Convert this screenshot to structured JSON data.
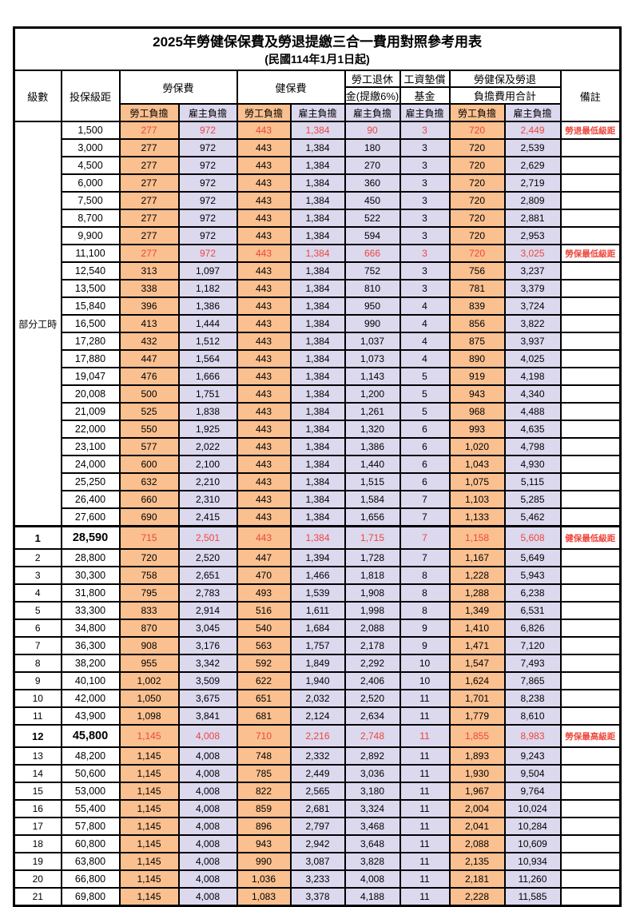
{
  "title": "2025年勞健保保費及勞退提繳三合一費用對照參考用表",
  "subtitle": "(民國114年1月1日起)",
  "colors": {
    "employee_bg": "#FAC090",
    "employer_bg": "#DCD8EE",
    "highlight_red": "#EE463C",
    "border": "#000000"
  },
  "header": {
    "level": "級數",
    "salary": "投保級距",
    "labor_insurance": "勞保費",
    "health_insurance": "健保費",
    "pension_line1": "勞工退休",
    "pension_line2": "金(提繳6%)",
    "wage_fund_line1": "工資墊償",
    "wage_fund_line2": "基金",
    "total_line1": "勞健保及勞退",
    "total_line2": "負擔費用合計",
    "remark": "備註",
    "employee": "勞工負擔",
    "employer": "雇主負擔"
  },
  "part_time_label": "部分工時",
  "rows": [
    {
      "level": "",
      "salary": "1,500",
      "v": [
        "277",
        "972",
        "443",
        "1,384",
        "90",
        "3",
        "720",
        "2,449"
      ],
      "remark": "勞退最低級距",
      "red": true
    },
    {
      "level": "",
      "salary": "3,000",
      "v": [
        "277",
        "972",
        "443",
        "1,384",
        "180",
        "3",
        "720",
        "2,539"
      ],
      "remark": ""
    },
    {
      "level": "",
      "salary": "4,500",
      "v": [
        "277",
        "972",
        "443",
        "1,384",
        "270",
        "3",
        "720",
        "2,629"
      ],
      "remark": ""
    },
    {
      "level": "",
      "salary": "6,000",
      "v": [
        "277",
        "972",
        "443",
        "1,384",
        "360",
        "3",
        "720",
        "2,719"
      ],
      "remark": ""
    },
    {
      "level": "",
      "salary": "7,500",
      "v": [
        "277",
        "972",
        "443",
        "1,384",
        "450",
        "3",
        "720",
        "2,809"
      ],
      "remark": ""
    },
    {
      "level": "",
      "salary": "8,700",
      "v": [
        "277",
        "972",
        "443",
        "1,384",
        "522",
        "3",
        "720",
        "2,881"
      ],
      "remark": ""
    },
    {
      "level": "",
      "salary": "9,900",
      "v": [
        "277",
        "972",
        "443",
        "1,384",
        "594",
        "3",
        "720",
        "2,953"
      ],
      "remark": ""
    },
    {
      "level": "",
      "salary": "11,100",
      "v": [
        "277",
        "972",
        "443",
        "1,384",
        "666",
        "3",
        "720",
        "3,025"
      ],
      "remark": "勞保最低級距",
      "red": true
    },
    {
      "level": "",
      "salary": "12,540",
      "v": [
        "313",
        "1,097",
        "443",
        "1,384",
        "752",
        "3",
        "756",
        "3,237"
      ],
      "remark": ""
    },
    {
      "level": "",
      "salary": "13,500",
      "v": [
        "338",
        "1,182",
        "443",
        "1,384",
        "810",
        "3",
        "781",
        "3,379"
      ],
      "remark": ""
    },
    {
      "level": "",
      "salary": "15,840",
      "v": [
        "396",
        "1,386",
        "443",
        "1,384",
        "950",
        "4",
        "839",
        "3,724"
      ],
      "remark": ""
    },
    {
      "level": "",
      "salary": "16,500",
      "v": [
        "413",
        "1,444",
        "443",
        "1,384",
        "990",
        "4",
        "856",
        "3,822"
      ],
      "remark": ""
    },
    {
      "level": "",
      "salary": "17,280",
      "v": [
        "432",
        "1,512",
        "443",
        "1,384",
        "1,037",
        "4",
        "875",
        "3,937"
      ],
      "remark": ""
    },
    {
      "level": "",
      "salary": "17,880",
      "v": [
        "447",
        "1,564",
        "443",
        "1,384",
        "1,073",
        "4",
        "890",
        "4,025"
      ],
      "remark": ""
    },
    {
      "level": "",
      "salary": "19,047",
      "v": [
        "476",
        "1,666",
        "443",
        "1,384",
        "1,143",
        "5",
        "919",
        "4,198"
      ],
      "remark": ""
    },
    {
      "level": "",
      "salary": "20,008",
      "v": [
        "500",
        "1,751",
        "443",
        "1,384",
        "1,200",
        "5",
        "943",
        "4,340"
      ],
      "remark": ""
    },
    {
      "level": "",
      "salary": "21,009",
      "v": [
        "525",
        "1,838",
        "443",
        "1,384",
        "1,261",
        "5",
        "968",
        "4,488"
      ],
      "remark": ""
    },
    {
      "level": "",
      "salary": "22,000",
      "v": [
        "550",
        "1,925",
        "443",
        "1,384",
        "1,320",
        "6",
        "993",
        "4,635"
      ],
      "remark": ""
    },
    {
      "level": "",
      "salary": "23,100",
      "v": [
        "577",
        "2,022",
        "443",
        "1,384",
        "1,386",
        "6",
        "1,020",
        "4,798"
      ],
      "remark": ""
    },
    {
      "level": "",
      "salary": "24,000",
      "v": [
        "600",
        "2,100",
        "443",
        "1,384",
        "1,440",
        "6",
        "1,043",
        "4,930"
      ],
      "remark": ""
    },
    {
      "level": "",
      "salary": "25,250",
      "v": [
        "632",
        "2,210",
        "443",
        "1,384",
        "1,515",
        "6",
        "1,075",
        "5,115"
      ],
      "remark": ""
    },
    {
      "level": "",
      "salary": "26,400",
      "v": [
        "660",
        "2,310",
        "443",
        "1,384",
        "1,584",
        "7",
        "1,103",
        "5,285"
      ],
      "remark": ""
    },
    {
      "level": "",
      "salary": "27,600",
      "v": [
        "690",
        "2,415",
        "443",
        "1,384",
        "1,656",
        "7",
        "1,133",
        "5,462"
      ],
      "remark": ""
    },
    {
      "level": "1",
      "salary": "28,590",
      "v": [
        "715",
        "2,501",
        "443",
        "1,384",
        "1,715",
        "7",
        "1,158",
        "5,608"
      ],
      "remark": "健保最低級距",
      "red": true,
      "bold": true,
      "section": true
    },
    {
      "level": "2",
      "salary": "28,800",
      "v": [
        "720",
        "2,520",
        "447",
        "1,394",
        "1,728",
        "7",
        "1,167",
        "5,649"
      ],
      "remark": ""
    },
    {
      "level": "3",
      "salary": "30,300",
      "v": [
        "758",
        "2,651",
        "470",
        "1,466",
        "1,818",
        "8",
        "1,228",
        "5,943"
      ],
      "remark": ""
    },
    {
      "level": "4",
      "salary": "31,800",
      "v": [
        "795",
        "2,783",
        "493",
        "1,539",
        "1,908",
        "8",
        "1,288",
        "6,238"
      ],
      "remark": ""
    },
    {
      "level": "5",
      "salary": "33,300",
      "v": [
        "833",
        "2,914",
        "516",
        "1,611",
        "1,998",
        "8",
        "1,349",
        "6,531"
      ],
      "remark": ""
    },
    {
      "level": "6",
      "salary": "34,800",
      "v": [
        "870",
        "3,045",
        "540",
        "1,684",
        "2,088",
        "9",
        "1,410",
        "6,826"
      ],
      "remark": ""
    },
    {
      "level": "7",
      "salary": "36,300",
      "v": [
        "908",
        "3,176",
        "563",
        "1,757",
        "2,178",
        "9",
        "1,471",
        "7,120"
      ],
      "remark": ""
    },
    {
      "level": "8",
      "salary": "38,200",
      "v": [
        "955",
        "3,342",
        "592",
        "1,849",
        "2,292",
        "10",
        "1,547",
        "7,493"
      ],
      "remark": ""
    },
    {
      "level": "9",
      "salary": "40,100",
      "v": [
        "1,002",
        "3,509",
        "622",
        "1,940",
        "2,406",
        "10",
        "1,624",
        "7,865"
      ],
      "remark": ""
    },
    {
      "level": "10",
      "salary": "42,000",
      "v": [
        "1,050",
        "3,675",
        "651",
        "2,032",
        "2,520",
        "11",
        "1,701",
        "8,238"
      ],
      "remark": ""
    },
    {
      "level": "11",
      "salary": "43,900",
      "v": [
        "1,098",
        "3,841",
        "681",
        "2,124",
        "2,634",
        "11",
        "1,779",
        "8,610"
      ],
      "remark": ""
    },
    {
      "level": "12",
      "salary": "45,800",
      "v": [
        "1,145",
        "4,008",
        "710",
        "2,216",
        "2,748",
        "11",
        "1,855",
        "8,983"
      ],
      "remark": "勞保最高級距",
      "red": true,
      "bold": true
    },
    {
      "level": "13",
      "salary": "48,200",
      "v": [
        "1,145",
        "4,008",
        "748",
        "2,332",
        "2,892",
        "11",
        "1,893",
        "9,243"
      ],
      "remark": ""
    },
    {
      "level": "14",
      "salary": "50,600",
      "v": [
        "1,145",
        "4,008",
        "785",
        "2,449",
        "3,036",
        "11",
        "1,930",
        "9,504"
      ],
      "remark": ""
    },
    {
      "level": "15",
      "salary": "53,000",
      "v": [
        "1,145",
        "4,008",
        "822",
        "2,565",
        "3,180",
        "11",
        "1,967",
        "9,764"
      ],
      "remark": ""
    },
    {
      "level": "16",
      "salary": "55,400",
      "v": [
        "1,145",
        "4,008",
        "859",
        "2,681",
        "3,324",
        "11",
        "2,004",
        "10,024"
      ],
      "remark": ""
    },
    {
      "level": "17",
      "salary": "57,800",
      "v": [
        "1,145",
        "4,008",
        "896",
        "2,797",
        "3,468",
        "11",
        "2,041",
        "10,284"
      ],
      "remark": ""
    },
    {
      "level": "18",
      "salary": "60,800",
      "v": [
        "1,145",
        "4,008",
        "943",
        "2,942",
        "3,648",
        "11",
        "2,088",
        "10,609"
      ],
      "remark": ""
    },
    {
      "level": "19",
      "salary": "63,800",
      "v": [
        "1,145",
        "4,008",
        "990",
        "3,087",
        "3,828",
        "11",
        "2,135",
        "10,934"
      ],
      "remark": ""
    },
    {
      "level": "20",
      "salary": "66,800",
      "v": [
        "1,145",
        "4,008",
        "1,036",
        "3,233",
        "4,008",
        "11",
        "2,181",
        "11,260"
      ],
      "remark": ""
    },
    {
      "level": "21",
      "salary": "69,800",
      "v": [
        "1,145",
        "4,008",
        "1,083",
        "3,378",
        "4,188",
        "11",
        "2,228",
        "11,585"
      ],
      "remark": ""
    }
  ]
}
